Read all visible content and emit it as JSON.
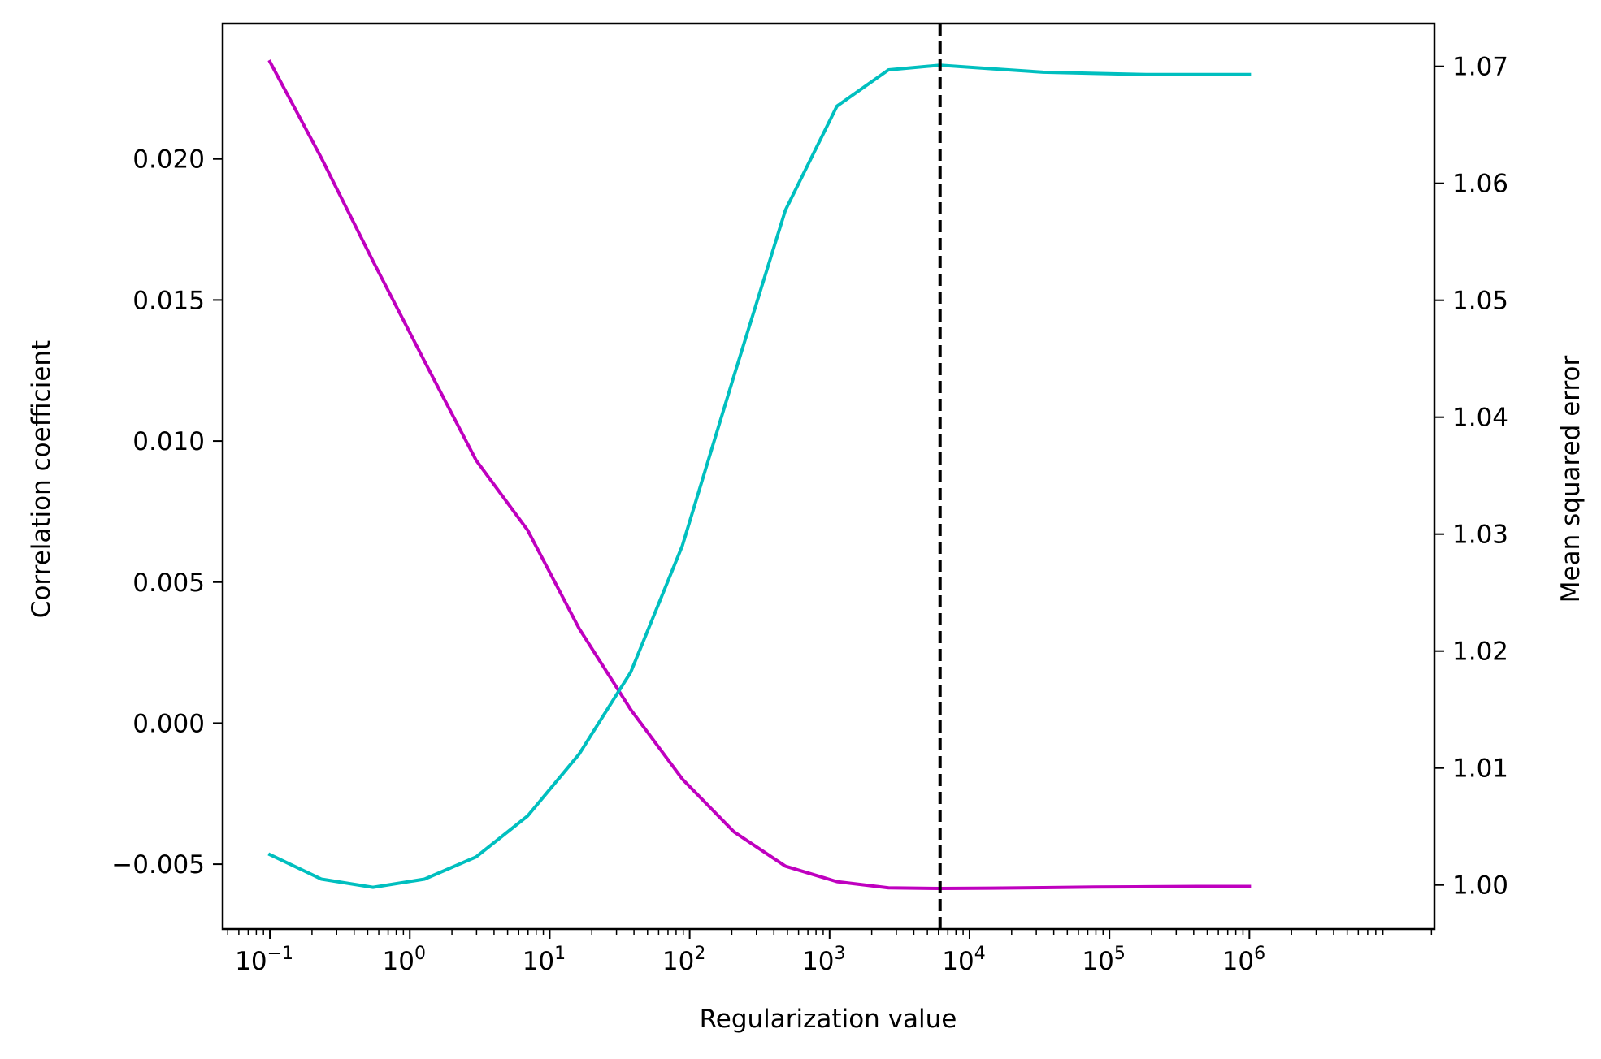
{
  "chart_data": {
    "type": "line",
    "xlabel": "Regularization value",
    "ylabel_left": "Correlation coefficient",
    "ylabel_right": "Mean squared error",
    "x_scale": "log",
    "xlim": [
      0.046,
      21000000
    ],
    "ylim_left": [
      -0.0073,
      0.0248
    ],
    "ylim_right": [
      0.99623,
      1.07366
    ],
    "x_ticks": [
      {
        "base": "10",
        "exp": "−1",
        "value": 0.1
      },
      {
        "base": "10",
        "exp": "0",
        "value": 1
      },
      {
        "base": "10",
        "exp": "1",
        "value": 10
      },
      {
        "base": "10",
        "exp": "2",
        "value": 100
      },
      {
        "base": "10",
        "exp": "3",
        "value": 1000
      },
      {
        "base": "10",
        "exp": "4",
        "value": 10000
      },
      {
        "base": "10",
        "exp": "5",
        "value": 100000
      },
      {
        "base": "10",
        "exp": "6",
        "value": 1000000
      }
    ],
    "y_ticks_left": [
      {
        "label": "−0.005",
        "value": -0.005
      },
      {
        "label": "0.000",
        "value": 0.0
      },
      {
        "label": "0.005",
        "value": 0.005
      },
      {
        "label": "0.010",
        "value": 0.01
      },
      {
        "label": "0.015",
        "value": 0.015
      },
      {
        "label": "0.020",
        "value": 0.02
      }
    ],
    "y_ticks_right": [
      {
        "label": "1.00",
        "value": 1.0
      },
      {
        "label": "1.01",
        "value": 1.01
      },
      {
        "label": "1.02",
        "value": 1.02
      },
      {
        "label": "1.03",
        "value": 1.03
      },
      {
        "label": "1.04",
        "value": 1.04
      },
      {
        "label": "1.05",
        "value": 1.05
      },
      {
        "label": "1.06",
        "value": 1.06
      },
      {
        "label": "1.07",
        "value": 1.07
      }
    ],
    "x": [
      0.1,
      0.2336,
      0.5456,
      1.274,
      2.976,
      6.952,
      16.24,
      37.93,
      88.59,
      206.9,
      483.3,
      1129,
      2637,
      6158,
      14384,
      33598,
      78476,
      183298,
      428133,
      1000000
    ],
    "series": [
      {
        "axis": "left",
        "color": "#bf00bf",
        "values": [
          0.02345,
          0.02003,
          0.01638,
          0.01283,
          0.00932,
          0.00684,
          0.00335,
          0.00048,
          -0.00198,
          -0.00385,
          -0.00507,
          -0.00562,
          -0.00584,
          -0.00586,
          -0.00585,
          -0.00583,
          -0.00581,
          -0.0058,
          -0.00579,
          -0.00579
        ]
      },
      {
        "axis": "right",
        "color": "#00bfbf",
        "values": [
          1.0026,
          1.0005,
          0.9998,
          1.0005,
          1.0024,
          1.0059,
          1.0112,
          1.0182,
          1.029,
          1.0435,
          1.0577,
          1.0666,
          1.0697,
          1.0701,
          1.0698,
          1.0695,
          1.0694,
          1.0693,
          1.0693,
          1.0693
        ]
      }
    ],
    "vline": {
      "x": 6158,
      "style": "dashed",
      "color": "#000000"
    }
  }
}
